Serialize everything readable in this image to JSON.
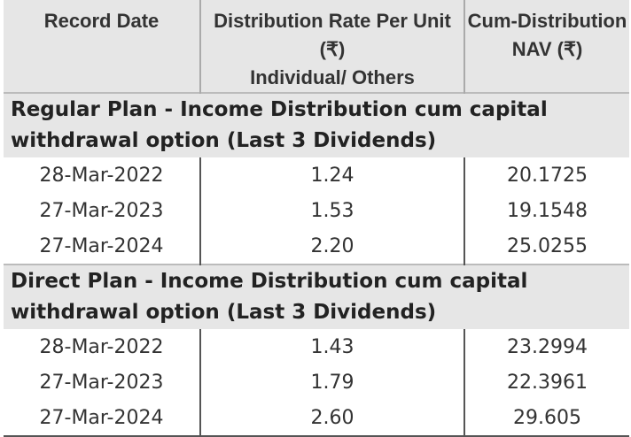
{
  "table": {
    "header": [
      [
        "Record Date"
      ],
      [
        "Distribution Rate Per Unit  (₹)",
        "Individual/ Others"
      ],
      [
        "Cum-Distribution",
        "NAV (₹)"
      ]
    ],
    "sections": [
      {
        "title": "Regular Plan - Income Distribution cum capital withdrawal option (Last 3 Dividends)",
        "rows": [
          [
            "28-Mar-2022",
            "1.24",
            "20.1725"
          ],
          [
            "27-Mar-2023",
            "1.53",
            "19.1548"
          ],
          [
            "27-Mar-2024",
            "2.20",
            "25.0255"
          ]
        ]
      },
      {
        "title": "Direct Plan - Income Distribution cum capital withdrawal option (Last 3 Dividends)",
        "rows": [
          [
            "28-Mar-2022",
            "1.43",
            "23.2994"
          ],
          [
            "27-Mar-2023",
            "1.79",
            "22.3961"
          ],
          [
            "27-Mar-2024",
            "2.60",
            "29.605"
          ]
        ]
      }
    ]
  }
}
